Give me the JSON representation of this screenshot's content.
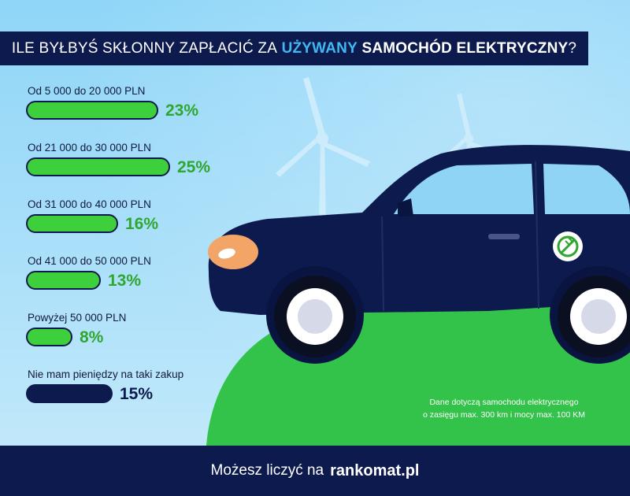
{
  "title": {
    "prefix": "ILE BYŁBYŚ SKŁONNY ZAPŁACIĆ ZA",
    "highlight": "UŻYWANY",
    "bold": "SAMOCHÓD ELEKTRYCZNY",
    "suffix": "?"
  },
  "chart_data": {
    "type": "bar",
    "orientation": "horizontal",
    "title": "ILE BYŁBYŚ SKŁONNY ZAPŁACIĆ ZA UŻYWANY SAMOCHÓD ELEKTRYCZNY?",
    "categories": [
      "Od 5 000 do 20 000 PLN",
      "Od 21 000 do 30 000 PLN",
      "Od 31 000 do 40 000 PLN",
      "Od 41 000 do 50 000 PLN",
      "Powyżej 50 000 PLN",
      "Nie mam pieniędzy na taki zakup"
    ],
    "values": [
      23,
      25,
      16,
      13,
      8,
      15
    ],
    "value_labels": [
      "23%",
      "25%",
      "16%",
      "13%",
      "8%",
      "15%"
    ],
    "unit": "%",
    "bar_colors": [
      "#3ecf3c",
      "#3ecf3c",
      "#3ecf3c",
      "#3ecf3c",
      "#3ecf3c",
      "#0d1a4e"
    ],
    "grid": false,
    "legend": "none"
  },
  "colors": {
    "navy": "#0d1a4e",
    "green": "#3ecf3c",
    "accent_blue": "#41b8f2",
    "sky": "#a7def9",
    "grass": "#33c24a"
  },
  "note": {
    "line1": "Dane dotyczą samochodu elektrycznego",
    "line2": "o zasięgu max. 300 km i mocy max. 100 KM"
  },
  "footer": {
    "text": "Możesz liczyć na",
    "brand": "rankomat.pl"
  },
  "icons": {
    "car_badge": "ev-plug-icon"
  }
}
